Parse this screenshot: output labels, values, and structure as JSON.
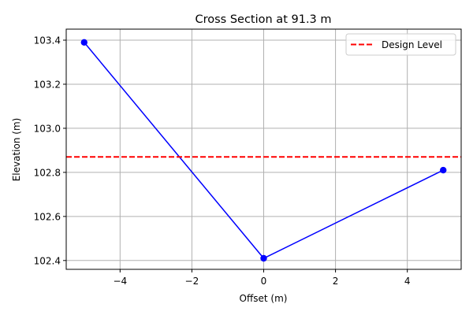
{
  "chart_data": {
    "type": "line",
    "title": "Cross Section at 91.3 m",
    "xlabel": "Offset (m)",
    "ylabel": "Elevation (m)",
    "xlim": [
      -5.5,
      5.5
    ],
    "ylim": [
      102.36,
      103.45
    ],
    "x_ticks": [
      -4,
      -2,
      0,
      2,
      4
    ],
    "x_tick_labels": [
      "−4",
      "−2",
      "0",
      "2",
      "4"
    ],
    "y_ticks": [
      102.4,
      102.6,
      102.8,
      103.0,
      103.2,
      103.4
    ],
    "y_tick_labels": [
      "102.4",
      "102.6",
      "102.8",
      "103.0",
      "103.2",
      "103.4"
    ],
    "grid": true,
    "legend_position": "top-right",
    "series": [
      {
        "x": [
          -5,
          0,
          5
        ],
        "y": [
          103.39,
          102.41,
          102.81
        ],
        "color": "#0000ff",
        "marker": "circle",
        "linestyle": "solid"
      }
    ],
    "reference_lines": [
      {
        "name": "Design Level",
        "orientation": "horizontal",
        "y": 102.87,
        "color": "#ff0000",
        "linestyle": "dashed"
      }
    ]
  }
}
